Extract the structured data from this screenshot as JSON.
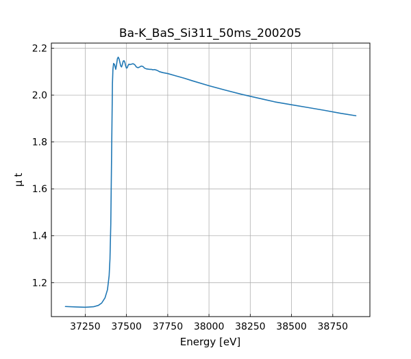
{
  "chart_data": {
    "type": "line",
    "title": "Ba-K_BaS_Si311_50ms_200205",
    "xlabel": "Energy [eV]",
    "ylabel": "μ t",
    "xlim": [
      37045,
      38975
    ],
    "ylim": [
      1.055,
      2.222
    ],
    "xticks": [
      37250,
      37500,
      37750,
      38000,
      38250,
      38500,
      38750
    ],
    "yticks": [
      1.2,
      1.4,
      1.6,
      1.8,
      2.0,
      2.2
    ],
    "xtick_labels": [
      "37250",
      "37500",
      "37750",
      "38000",
      "38250",
      "38500",
      "38750"
    ],
    "ytick_labels": [
      "1.2",
      "1.4",
      "1.6",
      "1.8",
      "2.0",
      "2.2"
    ],
    "grid": true,
    "line_color": "#1f77b4",
    "series": [
      {
        "x": [
          37130,
          37200,
          37250,
          37300,
          37330,
          37350,
          37370,
          37385,
          37395,
          37400,
          37405,
          37410,
          37415,
          37418,
          37422,
          37428,
          37435,
          37440,
          37445,
          37450,
          37455,
          37460,
          37465,
          37470,
          37475,
          37480,
          37485,
          37490,
          37495,
          37500,
          37505,
          37510,
          37515,
          37520,
          37530,
          37540,
          37550,
          37560,
          37570,
          37580,
          37590,
          37600,
          37610,
          37620,
          37630,
          37640,
          37650,
          37660,
          37670,
          37680,
          37690,
          37700,
          37720,
          37750,
          37800,
          37850,
          37900,
          38000,
          38100,
          38200,
          38300,
          38400,
          38500,
          38600,
          38700,
          38800,
          38890
        ],
        "y": [
          1.098,
          1.096,
          1.095,
          1.097,
          1.103,
          1.113,
          1.135,
          1.17,
          1.23,
          1.3,
          1.45,
          1.75,
          2.05,
          2.11,
          2.135,
          2.13,
          2.11,
          2.13,
          2.155,
          2.162,
          2.155,
          2.14,
          2.125,
          2.12,
          2.13,
          2.145,
          2.147,
          2.14,
          2.125,
          2.115,
          2.117,
          2.127,
          2.132,
          2.13,
          2.132,
          2.134,
          2.13,
          2.12,
          2.117,
          2.12,
          2.124,
          2.122,
          2.115,
          2.112,
          2.111,
          2.11,
          2.11,
          2.108,
          2.109,
          2.107,
          2.104,
          2.1,
          2.096,
          2.092,
          2.082,
          2.072,
          2.061,
          2.04,
          2.021,
          2.003,
          1.987,
          1.971,
          1.959,
          1.947,
          1.935,
          1.922,
          1.912
        ]
      }
    ]
  }
}
